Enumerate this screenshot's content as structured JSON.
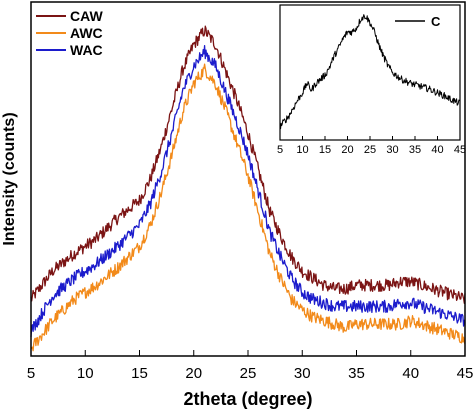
{
  "chart_data": [
    {
      "type": "line",
      "xlabel": "2theta (degree)",
      "ylabel": "Intensity (counts)",
      "xlim": [
        5,
        45
      ],
      "ylim": [
        0,
        1
      ],
      "xticks": [
        5,
        10,
        15,
        20,
        25,
        30,
        35,
        40,
        45
      ],
      "yticks_shown": false,
      "grid": false,
      "legend_position": "top-left",
      "series": [
        {
          "name": "CAW",
          "color": "#7b1414",
          "points": [
            [
              5,
              0.16
            ],
            [
              7,
              0.24
            ],
            [
              9,
              0.29
            ],
            [
              11,
              0.33
            ],
            [
              13,
              0.39
            ],
            [
              15,
              0.44
            ],
            [
              16,
              0.5
            ],
            [
              17,
              0.59
            ],
            [
              18,
              0.7
            ],
            [
              19,
              0.81
            ],
            [
              20,
              0.88
            ],
            [
              21,
              0.92
            ],
            [
              22,
              0.88
            ],
            [
              23,
              0.8
            ],
            [
              24,
              0.72
            ],
            [
              25,
              0.63
            ],
            [
              26,
              0.52
            ],
            [
              27,
              0.41
            ],
            [
              28,
              0.34
            ],
            [
              29,
              0.28
            ],
            [
              30,
              0.24
            ],
            [
              31,
              0.22
            ],
            [
              32,
              0.2
            ],
            [
              33,
              0.19
            ],
            [
              34,
              0.19
            ],
            [
              35,
              0.2
            ],
            [
              36,
              0.2
            ],
            [
              37,
              0.2
            ],
            [
              38,
              0.2
            ],
            [
              39,
              0.21
            ],
            [
              40,
              0.21
            ],
            [
              41,
              0.2
            ],
            [
              42,
              0.19
            ],
            [
              43,
              0.18
            ],
            [
              44,
              0.17
            ],
            [
              45,
              0.16
            ]
          ]
        },
        {
          "name": "AWC",
          "color": "#f28a1a",
          "points": [
            [
              5,
              0.02
            ],
            [
              7,
              0.1
            ],
            [
              9,
              0.16
            ],
            [
              11,
              0.2
            ],
            [
              13,
              0.25
            ],
            [
              15,
              0.31
            ],
            [
              16,
              0.37
            ],
            [
              17,
              0.46
            ],
            [
              18,
              0.57
            ],
            [
              19,
              0.69
            ],
            [
              20,
              0.77
            ],
            [
              21,
              0.81
            ],
            [
              22,
              0.77
            ],
            [
              23,
              0.69
            ],
            [
              24,
              0.6
            ],
            [
              25,
              0.51
            ],
            [
              26,
              0.4
            ],
            [
              27,
              0.29
            ],
            [
              28,
              0.22
            ],
            [
              29,
              0.16
            ],
            [
              30,
              0.13
            ],
            [
              31,
              0.11
            ],
            [
              32,
              0.1
            ],
            [
              33,
              0.09
            ],
            [
              34,
              0.08
            ],
            [
              35,
              0.09
            ],
            [
              36,
              0.09
            ],
            [
              37,
              0.09
            ],
            [
              38,
              0.09
            ],
            [
              39,
              0.09
            ],
            [
              40,
              0.1
            ],
            [
              41,
              0.09
            ],
            [
              42,
              0.08
            ],
            [
              43,
              0.07
            ],
            [
              44,
              0.06
            ],
            [
              45,
              0.05
            ]
          ]
        },
        {
          "name": "WAC",
          "color": "#1c1ccc",
          "points": [
            [
              5,
              0.07
            ],
            [
              7,
              0.17
            ],
            [
              9,
              0.22
            ],
            [
              11,
              0.26
            ],
            [
              13,
              0.31
            ],
            [
              15,
              0.37
            ],
            [
              16,
              0.43
            ],
            [
              17,
              0.52
            ],
            [
              18,
              0.63
            ],
            [
              19,
              0.75
            ],
            [
              20,
              0.82
            ],
            [
              21,
              0.86
            ],
            [
              22,
              0.82
            ],
            [
              23,
              0.74
            ],
            [
              24,
              0.66
            ],
            [
              25,
              0.57
            ],
            [
              26,
              0.46
            ],
            [
              27,
              0.35
            ],
            [
              28,
              0.28
            ],
            [
              29,
              0.22
            ],
            [
              30,
              0.18
            ],
            [
              31,
              0.16
            ],
            [
              32,
              0.15
            ],
            [
              33,
              0.14
            ],
            [
              34,
              0.14
            ],
            [
              35,
              0.14
            ],
            [
              36,
              0.14
            ],
            [
              37,
              0.14
            ],
            [
              38,
              0.14
            ],
            [
              39,
              0.15
            ],
            [
              40,
              0.15
            ],
            [
              41,
              0.14
            ],
            [
              42,
              0.13
            ],
            [
              43,
              0.12
            ],
            [
              44,
              0.11
            ],
            [
              45,
              0.1
            ]
          ]
        }
      ]
    },
    {
      "type": "line",
      "subplot": "inset",
      "xlim": [
        5,
        45
      ],
      "ylim": [
        0,
        1
      ],
      "xticks": [
        5,
        10,
        15,
        20,
        25,
        30,
        35,
        40,
        45
      ],
      "yticks_shown": false,
      "legend_position": "top-right",
      "series": [
        {
          "name": "C",
          "color": "#000000",
          "points": [
            [
              5,
              0.1
            ],
            [
              7,
              0.18
            ],
            [
              9,
              0.3
            ],
            [
              10,
              0.35
            ],
            [
              11,
              0.42
            ],
            [
              12,
              0.37
            ],
            [
              13,
              0.42
            ],
            [
              15,
              0.48
            ],
            [
              16,
              0.54
            ],
            [
              17,
              0.62
            ],
            [
              18,
              0.68
            ],
            [
              19,
              0.75
            ],
            [
              20,
              0.8
            ],
            [
              21,
              0.8
            ],
            [
              22,
              0.83
            ],
            [
              23,
              0.9
            ],
            [
              24,
              0.92
            ],
            [
              25,
              0.87
            ],
            [
              26,
              0.8
            ],
            [
              27,
              0.7
            ],
            [
              28,
              0.62
            ],
            [
              29,
              0.55
            ],
            [
              30,
              0.5
            ],
            [
              32,
              0.45
            ],
            [
              34,
              0.42
            ],
            [
              36,
              0.4
            ],
            [
              38,
              0.38
            ],
            [
              40,
              0.35
            ],
            [
              42,
              0.32
            ],
            [
              43,
              0.3
            ],
            [
              45,
              0.27
            ]
          ]
        }
      ]
    }
  ]
}
